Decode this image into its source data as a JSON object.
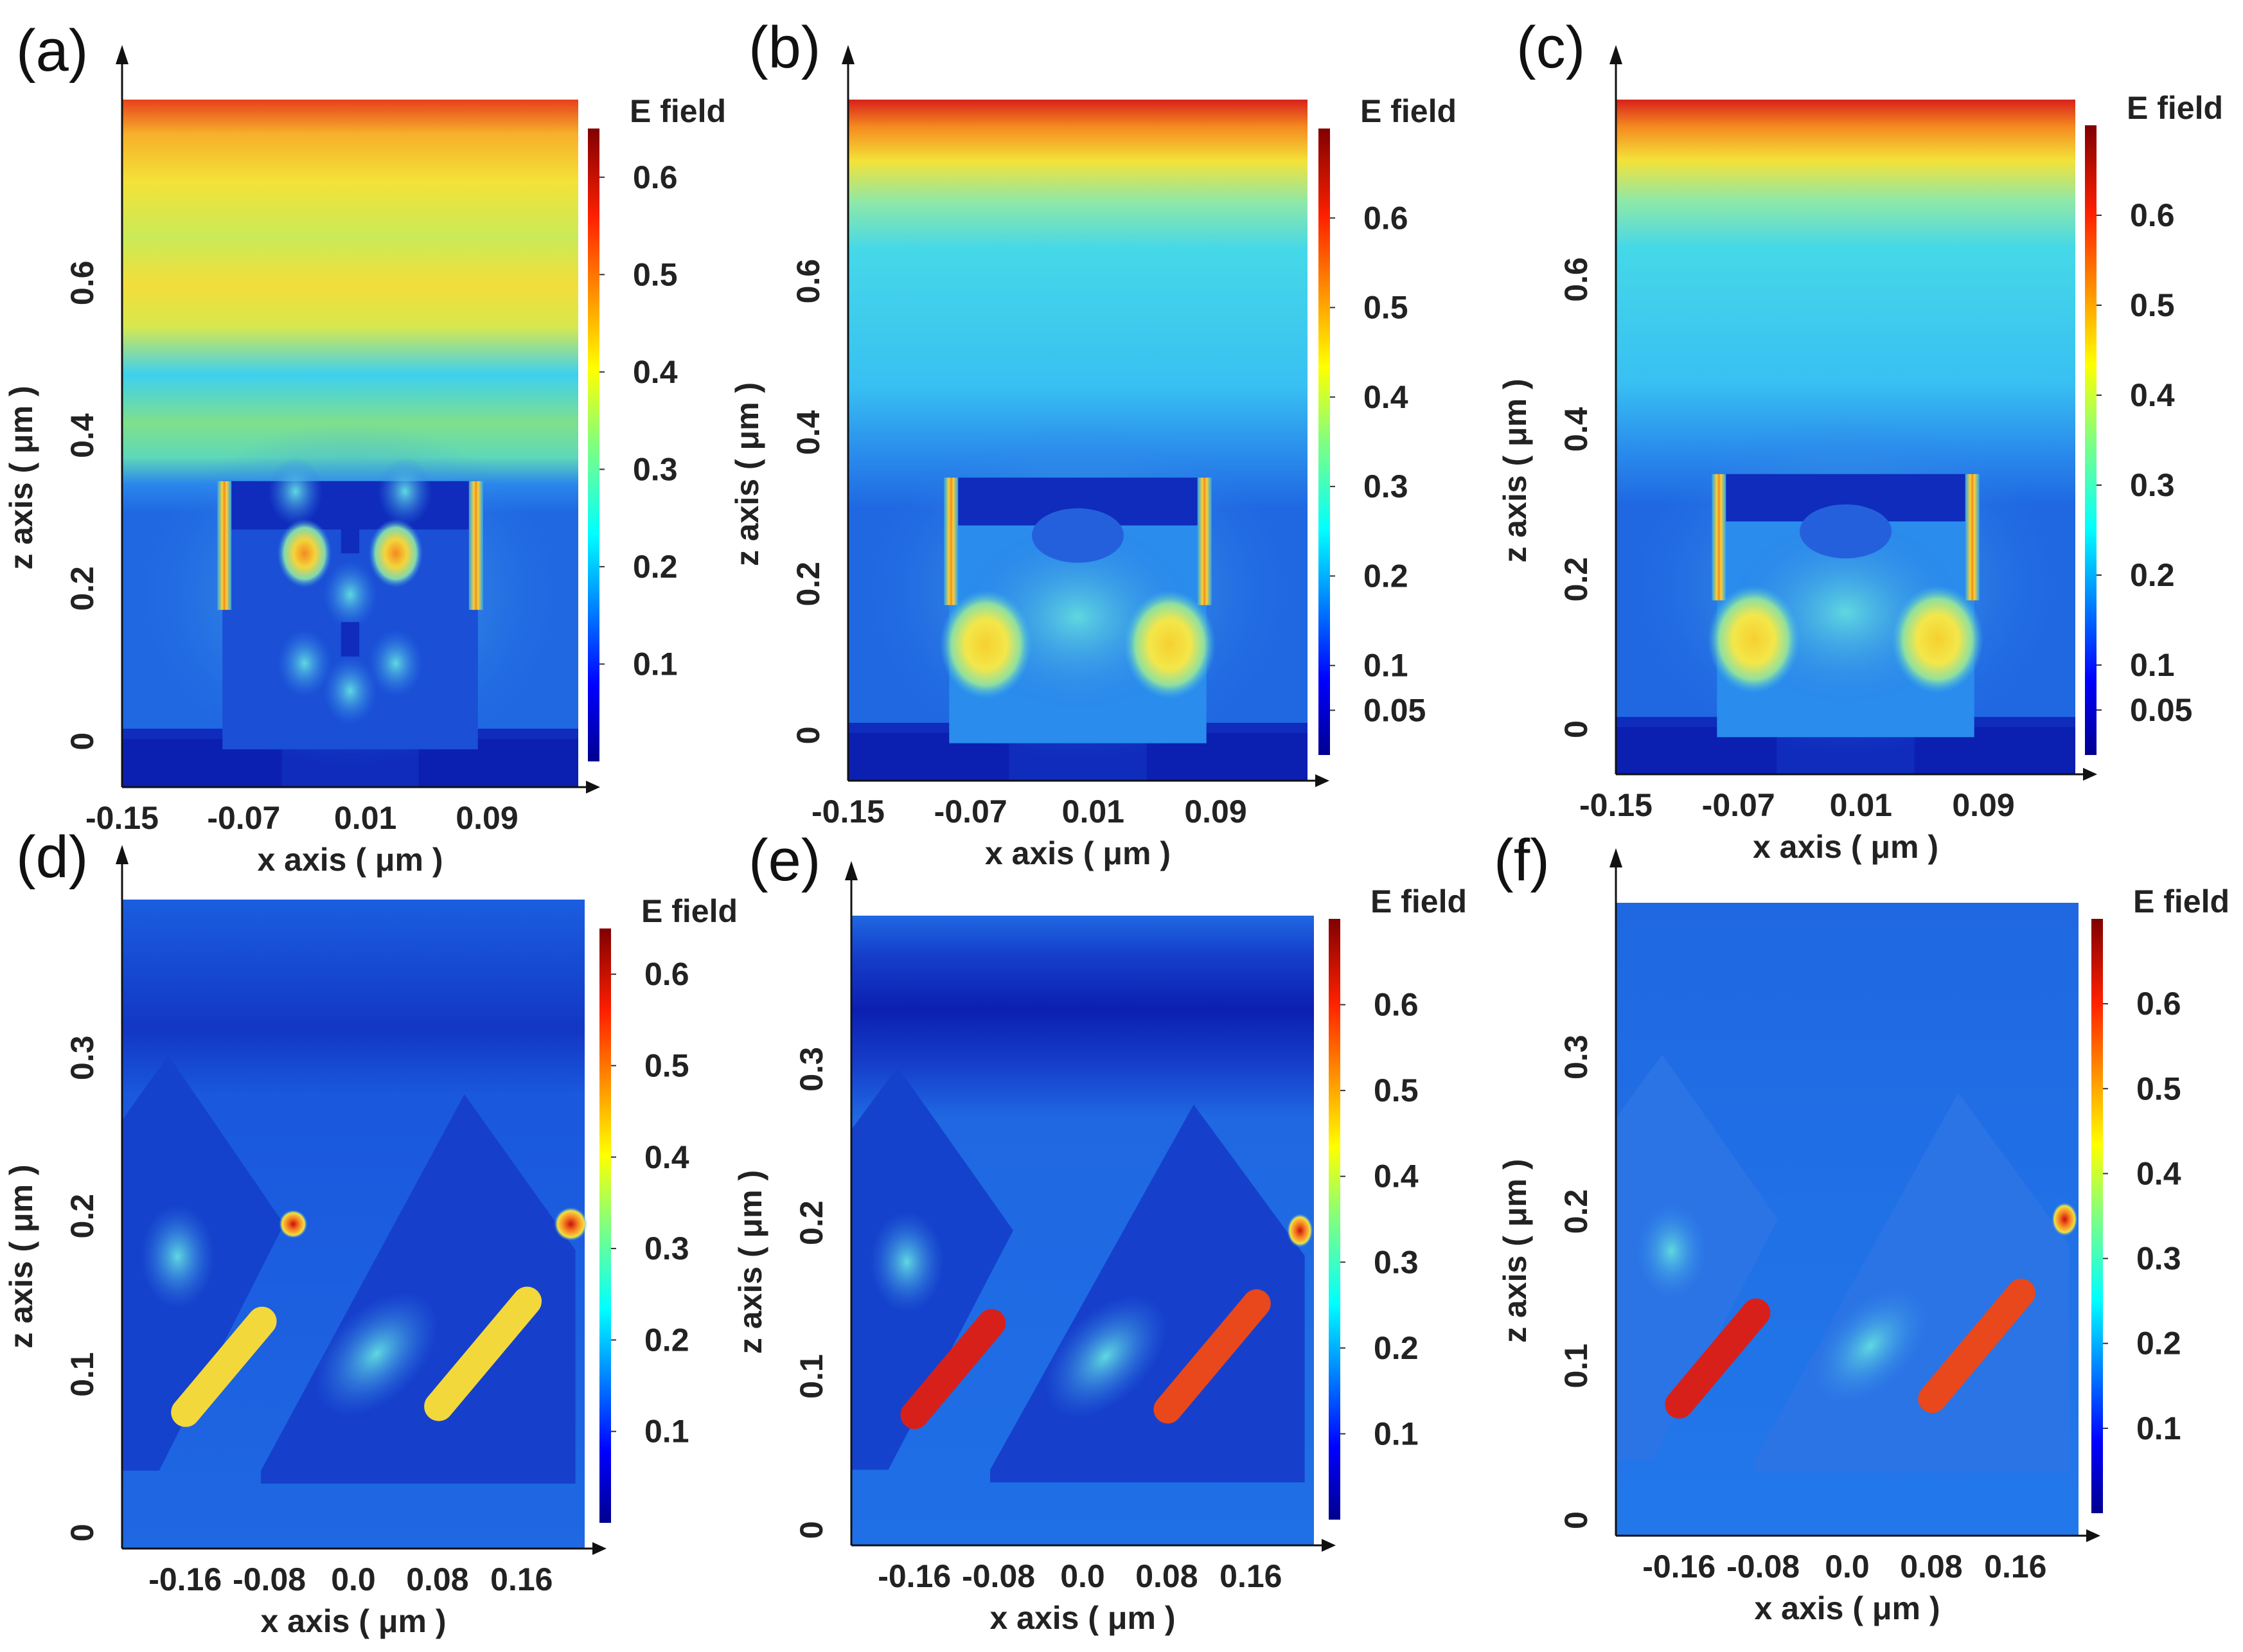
{
  "figure": {
    "colormap": [
      "#00008f",
      "#0000ff",
      "#0080ff",
      "#00ffff",
      "#80ff80",
      "#ffff00",
      "#ff8000",
      "#ff0000",
      "#800000"
    ],
    "heatmap_colors": {
      "dark_blue": "#0b1fb0",
      "blue": "#1f5fe0",
      "cyan": "#38c8f0",
      "green": "#9ee86a",
      "yellow": "#f7e038",
      "orange": "#f58a20",
      "red": "#d8201a"
    }
  },
  "chart_data": [
    {
      "id": "a",
      "panel_label": "(a)",
      "type": "heatmap",
      "structure": "rectangular",
      "title": "",
      "xlabel": "x axis ( μm )",
      "ylabel": "z axis ( μm )",
      "x_ticks": [
        "-0.15",
        "-0.07",
        "0.01",
        "0.09"
      ],
      "y_ticks": [
        "0",
        "0.2",
        "0.4",
        "0.6"
      ],
      "xlim": [
        -0.15,
        0.15
      ],
      "ylim": [
        -0.06,
        0.84
      ],
      "colorbar": {
        "title": "E field",
        "ticks": [
          "0.6",
          "0.5",
          "0.4",
          "0.3",
          "0.2",
          "0.1"
        ],
        "range": [
          0.0,
          0.65
        ]
      }
    },
    {
      "id": "b",
      "panel_label": "(b)",
      "type": "heatmap",
      "structure": "rectangular",
      "title": "",
      "xlabel": "x axis ( μm )",
      "ylabel": "z axis ( μm )",
      "x_ticks": [
        "-0.15",
        "-0.07",
        "0.01",
        "0.09"
      ],
      "y_ticks": [
        "0",
        "0.2",
        "0.4",
        "0.6"
      ],
      "xlim": [
        -0.15,
        0.15
      ],
      "ylim": [
        -0.06,
        0.84
      ],
      "colorbar": {
        "title": "E field",
        "ticks": [
          "0.6",
          "0.5",
          "0.4",
          "0.3",
          "0.2",
          "0.1",
          "0.05"
        ],
        "range": [
          0.0,
          0.7
        ]
      }
    },
    {
      "id": "c",
      "panel_label": "(c)",
      "type": "heatmap",
      "structure": "rectangular",
      "title": "",
      "xlabel": "x axis ( μm )",
      "ylabel": "z axis ( μm )",
      "x_ticks": [
        "-0.15",
        "-0.07",
        "0.01",
        "0.09"
      ],
      "y_ticks": [
        "0",
        "0.2",
        "0.4",
        "0.6"
      ],
      "xlim": [
        -0.15,
        0.15
      ],
      "ylim": [
        -0.06,
        0.84
      ],
      "colorbar": {
        "title": "E field",
        "ticks": [
          "0.6",
          "0.5",
          "0.4",
          "0.3",
          "0.2",
          "0.1",
          "0.05"
        ],
        "range": [
          0.0,
          0.7
        ]
      }
    },
    {
      "id": "d",
      "panel_label": "(d)",
      "type": "heatmap",
      "structure": "slanted",
      "title": "",
      "xlabel": "x axis ( μm )",
      "ylabel": "z axis ( μm )",
      "x_ticks": [
        "-0.16",
        "-0.08",
        "0.0",
        "0.08",
        "0.16"
      ],
      "y_ticks": [
        "0",
        "0.1",
        "0.2",
        "0.3"
      ],
      "xlim": [
        -0.22,
        0.22
      ],
      "ylim": [
        -0.01,
        0.4
      ],
      "colorbar": {
        "title": "E field",
        "ticks": [
          "0.6",
          "0.5",
          "0.4",
          "0.3",
          "0.2",
          "0.1"
        ],
        "range": [
          0.0,
          0.65
        ]
      }
    },
    {
      "id": "e",
      "panel_label": "(e)",
      "type": "heatmap",
      "structure": "slanted",
      "title": "",
      "xlabel": "x axis ( μm )",
      "ylabel": "z axis ( μm )",
      "x_ticks": [
        "-0.16",
        "-0.08",
        "0.0",
        "0.08",
        "0.16"
      ],
      "y_ticks": [
        "0",
        "0.1",
        "0.2",
        "0.3"
      ],
      "xlim": [
        -0.22,
        0.22
      ],
      "ylim": [
        -0.01,
        0.4
      ],
      "colorbar": {
        "title": "E field",
        "ticks": [
          "0.6",
          "0.5",
          "0.4",
          "0.3",
          "0.2",
          "0.1"
        ],
        "range": [
          0.0,
          0.7
        ]
      }
    },
    {
      "id": "f",
      "panel_label": "(f)",
      "type": "heatmap",
      "structure": "slanted",
      "title": "",
      "xlabel": "x axis ( μm )",
      "ylabel": "z axis ( μm )",
      "x_ticks": [
        "-0.16",
        "-0.08",
        "0.0",
        "0.08",
        "0.16"
      ],
      "y_ticks": [
        "0",
        "0.1",
        "0.2",
        "0.3"
      ],
      "xlim": [
        -0.22,
        0.22
      ],
      "ylim": [
        -0.01,
        0.4
      ],
      "colorbar": {
        "title": "E field",
        "ticks": [
          "0.6",
          "0.5",
          "0.4",
          "0.3",
          "0.2",
          "0.1"
        ],
        "range": [
          0.0,
          0.7
        ]
      }
    }
  ]
}
